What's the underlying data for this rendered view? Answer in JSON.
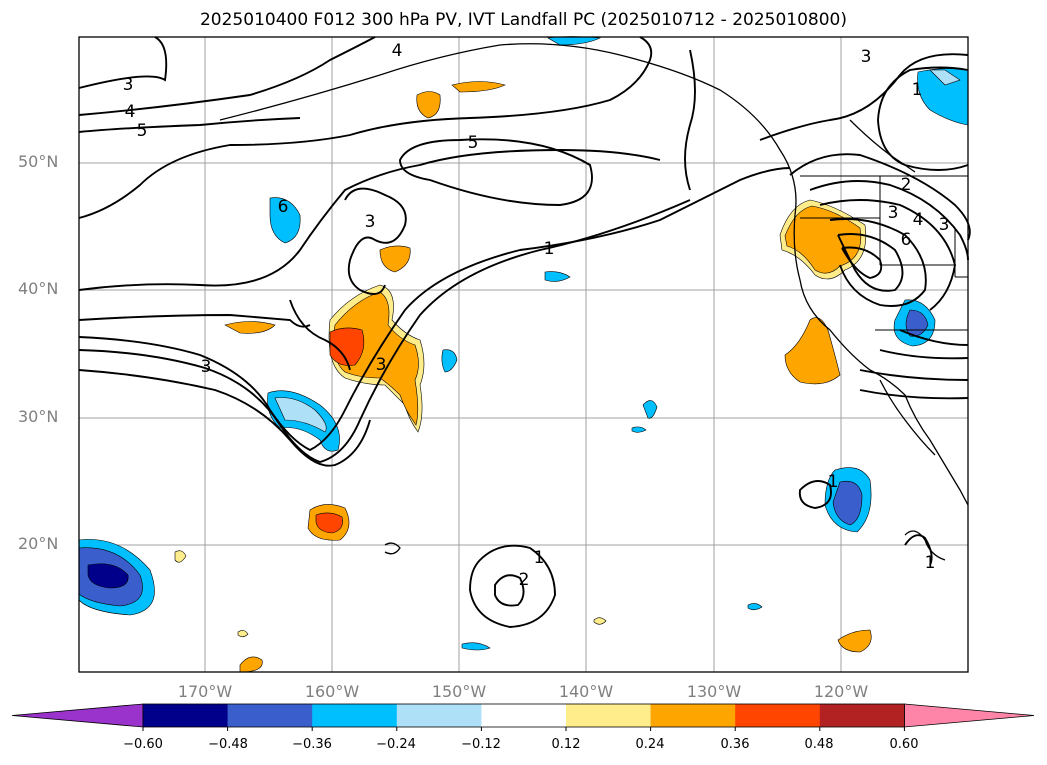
{
  "title": "2025010400 F012 300 hPa PV, IVT Landfall PC (2025010712 - 2025010800)",
  "lat_labels": [
    "50°N",
    "40°N",
    "30°N",
    "20°N"
  ],
  "lon_labels": [
    "170°W",
    "160°W",
    "150°W",
    "140°W",
    "130°W",
    "120°W"
  ],
  "colorbar": {
    "ticks": [
      "−0.60",
      "−0.48",
      "−0.36",
      "−0.24",
      "−0.12",
      "0.12",
      "0.24",
      "0.36",
      "0.48",
      "0.60"
    ],
    "colors": [
      "#9933cc",
      "#00008b",
      "#3a5fcd",
      "#00bfff",
      "#aee0f8",
      "#ffffff",
      "#ffec8b",
      "#ffa500",
      "#ff4500",
      "#b22222",
      "#ff85a8"
    ]
  },
  "contour_labels": [
    "3",
    "4",
    "5",
    "4",
    "5",
    "3",
    "1",
    "6",
    "3",
    "1",
    "3",
    "2",
    "3",
    "4",
    "3",
    "6",
    "1",
    "1",
    "2",
    "1",
    "3"
  ],
  "colors": {
    "contour": "#000000",
    "grid": "#a0a0a0",
    "land": "#000000"
  }
}
